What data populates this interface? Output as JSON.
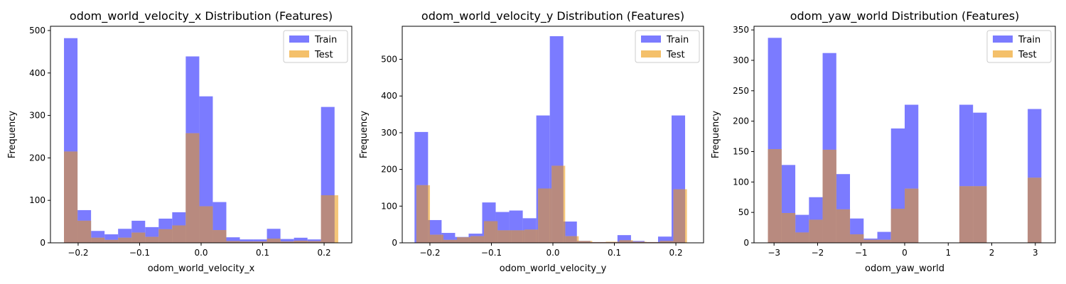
{
  "colors": {
    "train": "#7b7bff",
    "test": "#f4c06a",
    "overlap": "#b88a7f",
    "frame": "#000000"
  },
  "chart_data": [
    {
      "type": "bar",
      "title": "odom_world_velocity_x Distribution (Features)",
      "xlabel": "odom_world_velocity_x",
      "ylabel": "Frequency",
      "xlim": [
        -0.245,
        0.245
      ],
      "ylim": [
        0,
        510
      ],
      "xticks": [
        -0.2,
        -0.1,
        0.0,
        0.1,
        0.2
      ],
      "xtick_labels": [
        "−0.2",
        "−0.1",
        "0.0",
        "0.1",
        "0.2"
      ],
      "yticks": [
        0,
        100,
        200,
        300,
        400,
        500
      ],
      "legend": {
        "position": "top-right",
        "entries": [
          "Train",
          "Test"
        ]
      },
      "series": [
        {
          "name": "Train",
          "bins": [
            -0.223,
            -0.201,
            -0.179,
            -0.157,
            -0.135,
            -0.113,
            -0.091,
            -0.069,
            -0.047,
            -0.025,
            -0.003,
            0.019,
            0.041,
            0.063,
            0.085,
            0.107,
            0.129,
            0.151,
            0.173,
            0.195,
            0.217
          ],
          "values": [
            482,
            77,
            28,
            20,
            33,
            52,
            37,
            57,
            72,
            439,
            345,
            96,
            13,
            8,
            8,
            33,
            9,
            12,
            8,
            320
          ]
        },
        {
          "name": "Test",
          "bins": [
            -0.223,
            -0.201,
            -0.179,
            -0.157,
            -0.135,
            -0.113,
            -0.091,
            -0.069,
            -0.047,
            -0.025,
            -0.003,
            0.019,
            0.041,
            0.063,
            0.085,
            0.107,
            0.129,
            0.151,
            0.173,
            0.195,
            0.217,
            0.223
          ],
          "values": [
            215,
            52,
            12,
            7,
            12,
            24,
            14,
            32,
            41,
            258,
            86,
            30,
            4,
            3,
            3,
            10,
            3,
            5,
            4,
            112,
            112
          ]
        }
      ]
    },
    {
      "type": "bar",
      "title": "odom_world_velocity_y Distribution (Features)",
      "xlabel": "odom_world_velocity_y",
      "ylabel": "Frequency",
      "xlim": [
        -0.245,
        0.245
      ],
      "ylim": [
        0,
        590
      ],
      "xticks": [
        -0.2,
        -0.1,
        0.0,
        0.1,
        0.2
      ],
      "xtick_labels": [
        "−0.2",
        "−0.1",
        "0.0",
        "0.1",
        "0.2"
      ],
      "yticks": [
        0,
        100,
        200,
        300,
        400,
        500
      ],
      "legend": {
        "position": "top-right",
        "entries": [
          "Train",
          "Test"
        ]
      },
      "series": [
        {
          "name": "Train",
          "bins": [
            -0.225,
            -0.203,
            -0.181,
            -0.159,
            -0.137,
            -0.115,
            -0.093,
            -0.071,
            -0.049,
            -0.027,
            -0.005,
            0.017,
            0.039,
            0.061,
            0.083,
            0.105,
            0.127,
            0.149,
            0.171,
            0.193,
            0.215
          ],
          "values": [
            302,
            62,
            27,
            16,
            25,
            110,
            84,
            88,
            67,
            347,
            563,
            58,
            5,
            2,
            2,
            21,
            5,
            2,
            17,
            347
          ]
        },
        {
          "name": "Test",
          "bins": [
            -0.222,
            -0.2,
            -0.178,
            -0.156,
            -0.134,
            -0.112,
            -0.09,
            -0.068,
            -0.046,
            -0.024,
            -0.002,
            0.02,
            0.042,
            0.064,
            0.086,
            0.108,
            0.13,
            0.152,
            0.174,
            0.196,
            0.218
          ],
          "values": [
            157,
            22,
            8,
            15,
            18,
            59,
            34,
            34,
            36,
            148,
            210,
            18,
            5,
            2,
            3,
            7,
            3,
            2,
            5,
            146
          ]
        }
      ]
    },
    {
      "type": "bar",
      "title": "odom_yaw_world Distribution (Features)",
      "xlabel": "odom_yaw_world",
      "ylabel": "Frequency",
      "xlim": [
        -3.46,
        3.46
      ],
      "ylim": [
        0,
        356
      ],
      "xticks": [
        -3,
        -2,
        -1,
        0,
        1,
        2,
        3
      ],
      "xtick_labels": [
        "−3",
        "−2",
        "−1",
        "0",
        "1",
        "2",
        "3"
      ],
      "yticks": [
        0,
        50,
        100,
        150,
        200,
        250,
        300,
        350
      ],
      "legend": {
        "position": "top-right",
        "entries": [
          "Train",
          "Test"
        ]
      },
      "series": [
        {
          "name": "Train",
          "bins": [
            -3.14,
            -2.826,
            -2.512,
            -2.198,
            -1.884,
            -1.57,
            -1.256,
            -0.942,
            -0.628,
            -0.314,
            0.0,
            0.314,
            0.628,
            0.942,
            1.256,
            1.57,
            1.884,
            2.198,
            2.512,
            2.826,
            3.14
          ],
          "values": [
            337,
            128,
            46,
            75,
            312,
            113,
            40,
            7,
            18,
            188,
            227,
            0,
            0,
            0,
            227,
            214,
            0,
            0,
            0,
            220
          ]
        },
        {
          "name": "Test",
          "bins": [
            -3.14,
            -2.826,
            -2.512,
            -2.198,
            -1.884,
            -1.57,
            -1.256,
            -0.942,
            -0.628,
            -0.314,
            0.0,
            0.314,
            0.628,
            0.942,
            1.256,
            1.57,
            1.884,
            2.198,
            2.512,
            2.826,
            3.14
          ],
          "values": [
            154,
            49,
            17,
            38,
            153,
            55,
            14,
            5,
            5,
            56,
            89,
            0,
            0,
            0,
            93,
            93,
            0,
            0,
            0,
            107
          ]
        }
      ]
    }
  ]
}
